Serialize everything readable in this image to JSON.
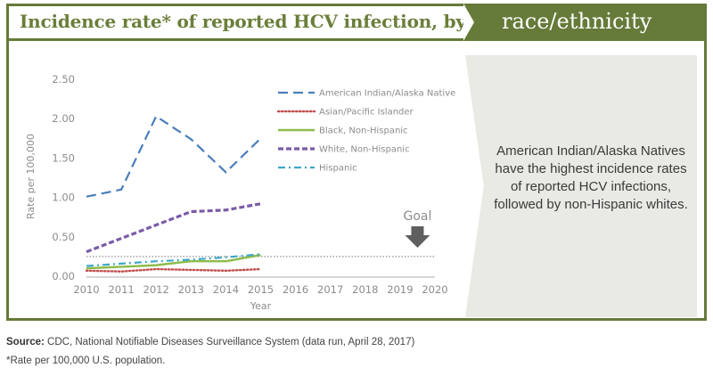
{
  "header": {
    "title_left": "Incidence rate* of reported HCV infection, by",
    "title_right": "race/ethnicity"
  },
  "callout": {
    "text": "American Indian/Alaska Natives have the highest incidence rates of reported HCV infections, followed by non-Hispanic whites."
  },
  "footer": {
    "source_label": "Source:",
    "source_text": " CDC, National Notifiable Diseases Surveillance System (data run, April 28, 2017)",
    "footnote": "*Rate per 100,000 U.S. population."
  },
  "colors": {
    "brand_green": "#667a39",
    "callout_bg": "#e8eae3"
  },
  "chart_data": {
    "type": "line",
    "title": "Incidence rate* of reported HCV infection, by race/ethnicity",
    "xlabel": "Year",
    "ylabel": "Rate per 100,000",
    "x": [
      2010,
      2011,
      2012,
      2013,
      2014,
      2015
    ],
    "x_ticks": [
      "2010",
      "2011",
      "2012",
      "2013",
      "2014",
      "2015",
      "2016",
      "2017",
      "2018",
      "2019",
      "2020"
    ],
    "xlim": [
      2010,
      2020
    ],
    "y_ticks": [
      "0.00",
      "0.50",
      "1.00",
      "1.50",
      "2.00",
      "2.50"
    ],
    "ylim": [
      0,
      2.5
    ],
    "grid": false,
    "legend_position": "top-right",
    "series": [
      {
        "name": "American Indian/Alaska Native",
        "color": "#4a7ebb",
        "style": "long-dash",
        "values": [
          1.01,
          1.1,
          2.03,
          1.74,
          1.32,
          1.75
        ]
      },
      {
        "name": "Asian/Pacific Islander",
        "color": "#c0504d",
        "style": "dotted",
        "values": [
          0.07,
          0.06,
          0.09,
          0.08,
          0.07,
          0.09
        ]
      },
      {
        "name": "Black, Non-Hispanic",
        "color": "#8dbb4a",
        "style": "solid",
        "values": [
          0.1,
          0.12,
          0.14,
          0.19,
          0.19,
          0.27
        ]
      },
      {
        "name": "White, Non-Hispanic",
        "color": "#7a5ba8",
        "style": "dash",
        "values": [
          0.31,
          0.48,
          0.65,
          0.82,
          0.84,
          0.92
        ]
      },
      {
        "name": "Hispanic",
        "color": "#3fa7c9",
        "style": "dash-dot",
        "values": [
          0.13,
          0.16,
          0.19,
          0.21,
          0.24,
          0.28
        ]
      }
    ],
    "annotations": [
      {
        "type": "goal-line",
        "value": 0.25,
        "x_from": 2010,
        "x_to": 2020
      },
      {
        "type": "arrow",
        "label": "Goal",
        "x": 2019.5
      }
    ]
  }
}
